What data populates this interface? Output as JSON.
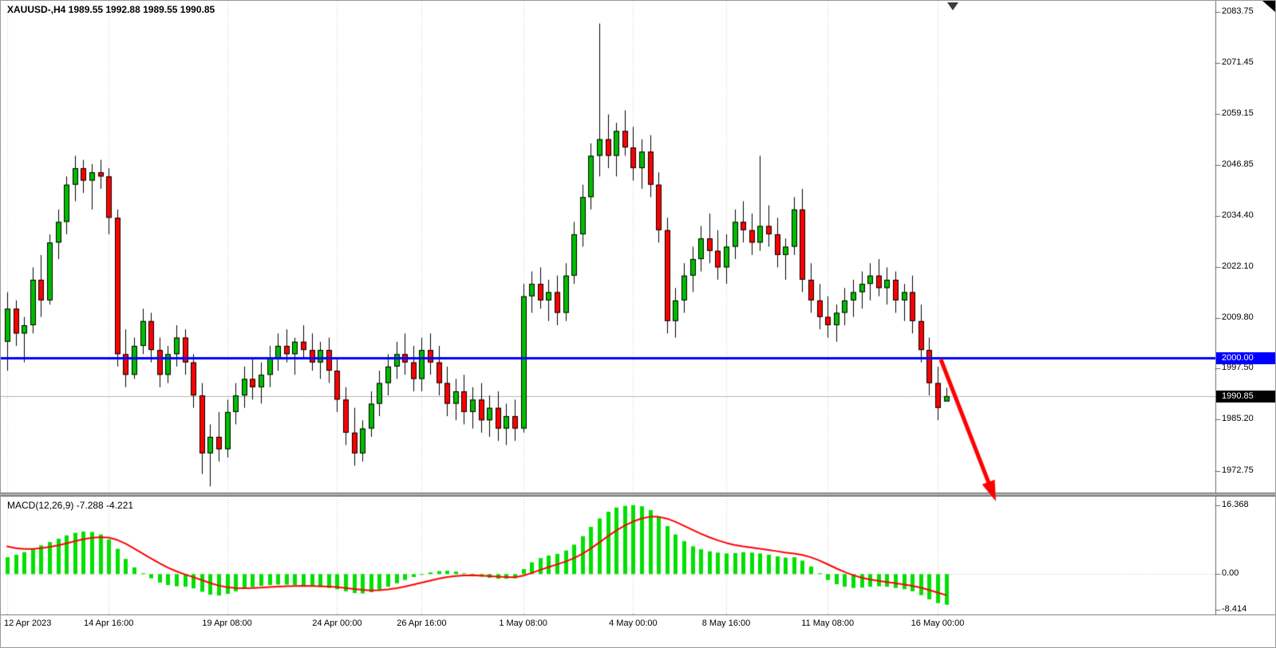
{
  "header": {
    "text": "XAUUSD-,H4 1989.55 1992.88 1989.55 1990.85",
    "symbol": "XAUUSD-",
    "timeframe": "H4",
    "open": "1989.55",
    "high": "1992.88",
    "low": "1989.55",
    "close": "1990.85"
  },
  "macd_panel": {
    "label": "MACD(12,26,9) -7.288 -4.221",
    "indicator_name": "MACD(12,26,9)",
    "macd_value": "-7.288",
    "signal_value": "-4.221"
  },
  "price_axis": {
    "badge_hline": {
      "text": "2000.00",
      "bg": "#0000ff",
      "fg": "#ffffff"
    },
    "badge_price": {
      "text": "1990.85",
      "bg": "#000000",
      "fg": "#ffffff"
    }
  },
  "colors": {
    "candle_up": "#00bd00",
    "candle_down": "#ff0000",
    "candle_outline": "#000000",
    "macd_bar": "#00e000",
    "signal": "#ff0000",
    "hline": "#0000ff",
    "current_price_line": "#b4b4b4",
    "grid": "#cdcdcd",
    "axis_line": "#6b6b6b",
    "arrow": "#ff0000",
    "text": "#000000",
    "background": "#ffffff"
  },
  "chart_data": [
    {
      "type": "candlestick",
      "symbol": "XAUUSD",
      "timeframe": "H4",
      "ylim": [
        1967.5,
        2086.5
      ],
      "y_ticks": [
        "2083.75",
        "2071.45",
        "2059.15",
        "2046.85",
        "2034.40",
        "2022.10",
        "2009.80",
        "1997.50",
        "1985.20",
        "1972.75"
      ],
      "x_ticks": [
        {
          "index": 0,
          "label": "12 Apr 2023"
        },
        {
          "index": 12,
          "label": "14 Apr 16:00"
        },
        {
          "index": 26,
          "label": "19 Apr 08:00"
        },
        {
          "index": 39,
          "label": "24 Apr 00:00"
        },
        {
          "index": 49,
          "label": "26 Apr 16:00"
        },
        {
          "index": 61,
          "label": "1 May 08:00"
        },
        {
          "index": 74,
          "label": "4 May 00:00"
        },
        {
          "index": 85,
          "label": "8 May 16:00"
        },
        {
          "index": 97,
          "label": "11 May 08:00"
        },
        {
          "index": 110,
          "label": "16 May 00:00"
        }
      ],
      "candles": [
        [
          2004,
          2016,
          1997,
          2012
        ],
        [
          2012,
          2014,
          2003,
          2006
        ],
        [
          2006,
          2010,
          1999,
          2008
        ],
        [
          2008,
          2022,
          2006,
          2019
        ],
        [
          2019,
          2025,
          2010,
          2014
        ],
        [
          2014,
          2030,
          2013,
          2028
        ],
        [
          2028,
          2036,
          2024,
          2033
        ],
        [
          2033,
          2044,
          2030,
          2042
        ],
        [
          2042,
          2049,
          2038,
          2046
        ],
        [
          2046,
          2048,
          2040,
          2043
        ],
        [
          2043,
          2047,
          2036,
          2045
        ],
        [
          2045,
          2048,
          2041,
          2044
        ],
        [
          2044,
          2046,
          2030,
          2034
        ],
        [
          2034,
          2036,
          1998,
          2001
        ],
        [
          2001,
          2007,
          1993,
          1996
        ],
        [
          1996,
          2005,
          1995,
          2003
        ],
        [
          2003,
          2012,
          2001,
          2009
        ],
        [
          2009,
          2011,
          1999,
          2002
        ],
        [
          2002,
          2005,
          1993,
          1996
        ],
        [
          1996,
          2003,
          1994,
          2001
        ],
        [
          2001,
          2008,
          1998,
          2005
        ],
        [
          2005,
          2007,
          1996,
          1999
        ],
        [
          1999,
          2001,
          1988,
          1991
        ],
        [
          1991,
          1994,
          1972,
          1977
        ],
        [
          1977,
          1984,
          1969,
          1981
        ],
        [
          1981,
          1987,
          1975,
          1978
        ],
        [
          1978,
          1990,
          1976,
          1987
        ],
        [
          1987,
          1994,
          1984,
          1991
        ],
        [
          1991,
          1998,
          1988,
          1995
        ],
        [
          1995,
          2000,
          1990,
          1993
        ],
        [
          1993,
          1999,
          1989,
          1996
        ],
        [
          1996,
          2003,
          1993,
          2000
        ],
        [
          2000,
          2006,
          1997,
          2003
        ],
        [
          2003,
          2007,
          1999,
          2001
        ],
        [
          2001,
          2005,
          1996,
          2004
        ],
        [
          2004,
          2008,
          2000,
          2002
        ],
        [
          2002,
          2006,
          1997,
          1999
        ],
        [
          1999,
          2004,
          1995,
          2002
        ],
        [
          2002,
          2005,
          1994,
          1997
        ],
        [
          1997,
          2000,
          1987,
          1990
        ],
        [
          1990,
          1993,
          1979,
          1982
        ],
        [
          1982,
          1988,
          1974,
          1977
        ],
        [
          1977,
          1985,
          1975,
          1983
        ],
        [
          1983,
          1992,
          1981,
          1989
        ],
        [
          1989,
          1997,
          1986,
          1994
        ],
        [
          1994,
          2001,
          1991,
          1998
        ],
        [
          1998,
          2004,
          1995,
          2001
        ],
        [
          2001,
          2006,
          1996,
          1999
        ],
        [
          1999,
          2003,
          1992,
          1995
        ],
        [
          1995,
          2005,
          1992,
          2002
        ],
        [
          2002,
          2006,
          1996,
          1999
        ],
        [
          1999,
          2003,
          1991,
          1994
        ],
        [
          1994,
          1998,
          1986,
          1989
        ],
        [
          1989,
          1995,
          1985,
          1992
        ],
        [
          1992,
          1996,
          1984,
          1987
        ],
        [
          1987,
          1993,
          1983,
          1990
        ],
        [
          1990,
          1994,
          1982,
          1985
        ],
        [
          1985,
          1991,
          1981,
          1988
        ],
        [
          1988,
          1992,
          1980,
          1983
        ],
        [
          1983,
          1989,
          1979,
          1986
        ],
        [
          1986,
          1990,
          1980,
          1983
        ],
        [
          1983,
          2018,
          1982,
          2015
        ],
        [
          2015,
          2021,
          2011,
          2018
        ],
        [
          2018,
          2022,
          2012,
          2014
        ],
        [
          2014,
          2019,
          2009,
          2016
        ],
        [
          2016,
          2020,
          2008,
          2011
        ],
        [
          2011,
          2023,
          2009,
          2020
        ],
        [
          2020,
          2033,
          2018,
          2030
        ],
        [
          2030,
          2042,
          2027,
          2039
        ],
        [
          2039,
          2052,
          2036,
          2049
        ],
        [
          2049,
          2081,
          2044,
          2053
        ],
        [
          2053,
          2059,
          2046,
          2049
        ],
        [
          2049,
          2057,
          2044,
          2055
        ],
        [
          2055,
          2060,
          2049,
          2051
        ],
        [
          2051,
          2056,
          2043,
          2046
        ],
        [
          2046,
          2053,
          2041,
          2050
        ],
        [
          2050,
          2054,
          2039,
          2042
        ],
        [
          2042,
          2045,
          2028,
          2031
        ],
        [
          2031,
          2034,
          2006,
          2009
        ],
        [
          2009,
          2017,
          2005,
          2014
        ],
        [
          2014,
          2023,
          2011,
          2020
        ],
        [
          2020,
          2027,
          2016,
          2024
        ],
        [
          2024,
          2032,
          2021,
          2029
        ],
        [
          2029,
          2035,
          2023,
          2026
        ],
        [
          2026,
          2031,
          2019,
          2022
        ],
        [
          2022,
          2030,
          2018,
          2027
        ],
        [
          2027,
          2036,
          2024,
          2033
        ],
        [
          2033,
          2038,
          2028,
          2031
        ],
        [
          2031,
          2035,
          2025,
          2028
        ],
        [
          2028,
          2049,
          2026,
          2032
        ],
        [
          2032,
          2037,
          2027,
          2030
        ],
        [
          2030,
          2034,
          2022,
          2025
        ],
        [
          2025,
          2029,
          2019,
          2027
        ],
        [
          2027,
          2039,
          2025,
          2036
        ],
        [
          2036,
          2041,
          2016,
          2019
        ],
        [
          2019,
          2023,
          2011,
          2014
        ],
        [
          2014,
          2018,
          2007,
          2010
        ],
        [
          2010,
          2015,
          2005,
          2008
        ],
        [
          2008,
          2013,
          2004,
          2011
        ],
        [
          2011,
          2017,
          2008,
          2014
        ],
        [
          2014,
          2019,
          2010,
          2016
        ],
        [
          2016,
          2021,
          2012,
          2018
        ],
        [
          2018,
          2023,
          2014,
          2020
        ],
        [
          2020,
          2024,
          2015,
          2017
        ],
        [
          2017,
          2022,
          2013,
          2019
        ],
        [
          2019,
          2021,
          2011,
          2014
        ],
        [
          2014,
          2018,
          2009,
          2016
        ],
        [
          2016,
          2020,
          2006,
          2009
        ],
        [
          2009,
          2013,
          1999,
          2002
        ],
        [
          2002,
          2005,
          1991,
          1994
        ],
        [
          1994,
          1998,
          1985,
          1988
        ],
        [
          1989.55,
          1992.88,
          1989.55,
          1990.85
        ]
      ],
      "overlays": {
        "horizontal_line": {
          "price": 2000.0,
          "label": "2000.00",
          "color": "#0000ff",
          "line_width": 3
        },
        "current_price_line": {
          "price": 1990.85,
          "label": "1990.85"
        },
        "arrow": {
          "from": [
            1178,
            450
          ],
          "to": [
            1247,
            628
          ],
          "color": "#ff0000"
        }
      }
    },
    {
      "type": "bar",
      "name": "MACD(12,26,9)",
      "ylim": [
        -9.6,
        18.4
      ],
      "y_ticks": [
        "16.368",
        "0.00",
        "-8.414"
      ],
      "values": [
        4.0,
        4.6,
        5.2,
        6.0,
        6.8,
        7.6,
        8.4,
        9.2,
        9.8,
        10.1,
        10.0,
        9.4,
        8.2,
        6.0,
        3.6,
        1.6,
        0.2,
        -1.0,
        -2.0,
        -2.6,
        -2.9,
        -3.0,
        -3.4,
        -4.2,
        -4.9,
        -5.1,
        -4.7,
        -4.1,
        -3.5,
        -3.1,
        -2.8,
        -2.6,
        -2.5,
        -2.5,
        -2.6,
        -2.7,
        -2.9,
        -3.1,
        -3.3,
        -3.6,
        -4.1,
        -4.5,
        -4.6,
        -4.3,
        -3.7,
        -3.0,
        -2.2,
        -1.4,
        -0.7,
        -0.1,
        0.4,
        0.7,
        0.8,
        0.6,
        0.2,
        -0.2,
        -0.6,
        -0.9,
        -1.1,
        -1.1,
        -1.0,
        1.2,
        2.8,
        3.8,
        4.4,
        4.8,
        5.6,
        7.0,
        9.0,
        11.2,
        13.2,
        14.8,
        15.8,
        16.2,
        16.368,
        16.1,
        15.2,
        13.6,
        11.4,
        9.4,
        7.8,
        6.6,
        5.9,
        5.4,
        5.1,
        4.9,
        5.0,
        5.2,
        5.1,
        4.9,
        4.6,
        4.2,
        3.9,
        4.0,
        3.2,
        1.8,
        0.2,
        -1.4,
        -2.4,
        -3.0,
        -3.3,
        -3.2,
        -3.0,
        -2.9,
        -3.0,
        -3.3,
        -3.6,
        -4.1,
        -5.0,
        -6.0,
        -6.9,
        -7.288
      ],
      "signal_line": {
        "color": "#ff0000",
        "description": "EMA(9) of MACD values",
        "last_value": -4.221
      },
      "last_value": -7.288
    }
  ]
}
